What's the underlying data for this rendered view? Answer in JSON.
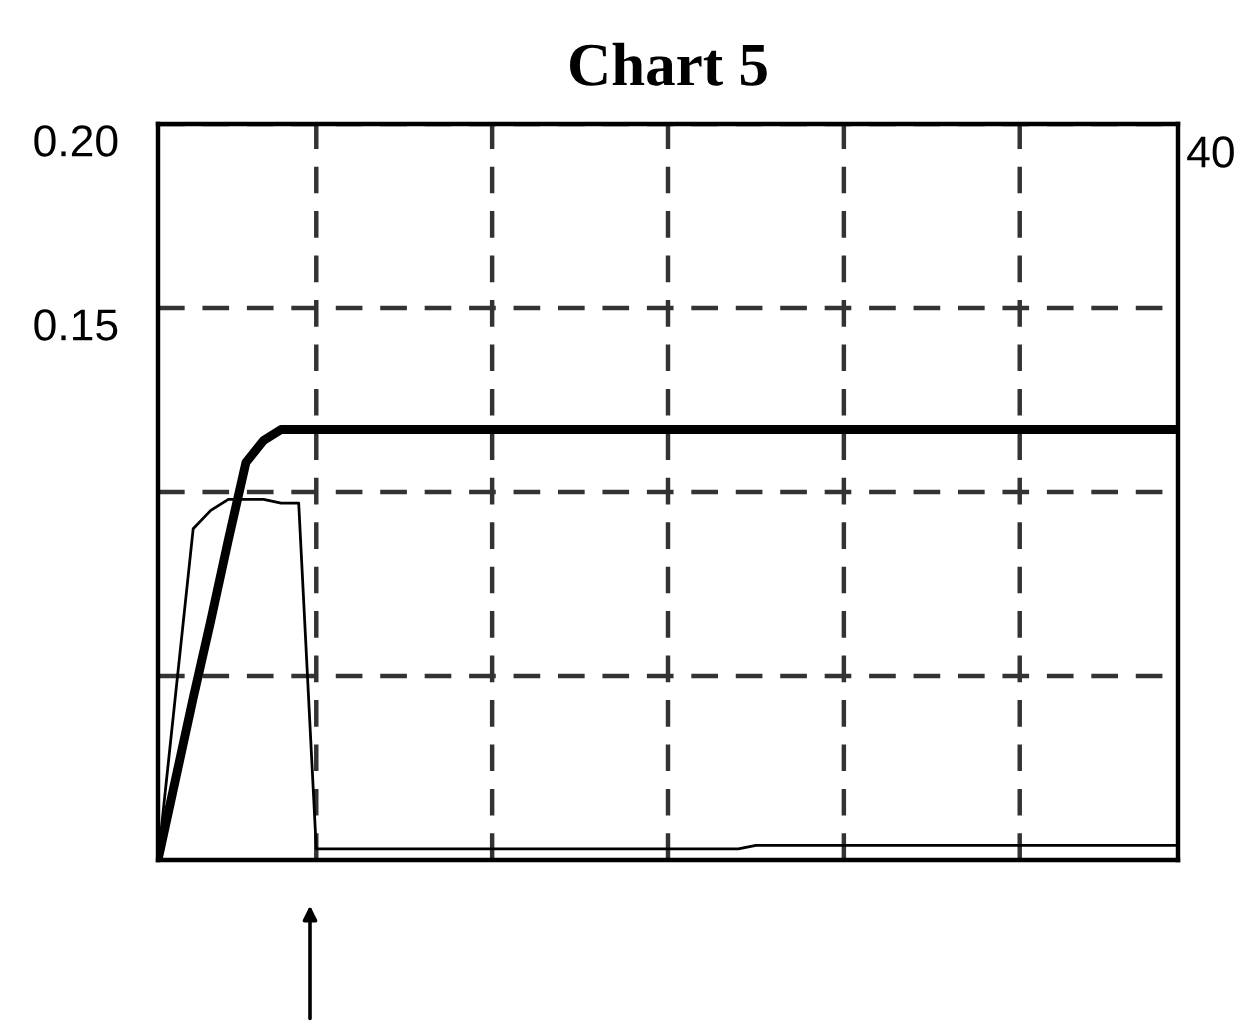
{
  "chart_data": {
    "type": "line",
    "title": "Chart 5",
    "categories": [
      null,
      null,
      null,
      null,
      null,
      null,
      null,
      null,
      null,
      null,
      null,
      null,
      null,
      null,
      null,
      null,
      null,
      null,
      null,
      null,
      null,
      null,
      null,
      null,
      null,
      null,
      null,
      null,
      null,
      null,
      null,
      null,
      null,
      null,
      null,
      null,
      null,
      null,
      null,
      null,
      null,
      null,
      null,
      null,
      null,
      null,
      null,
      null,
      null,
      null,
      null,
      null,
      null,
      null,
      null,
      null,
      null,
      null,
      null
    ],
    "ylim": [
      0,
      0.2
    ],
    "yticks": [
      {
        "value": 0.05,
        "label": null
      },
      {
        "value": 0.1,
        "label": null
      },
      {
        "value": 0.15,
        "label": "0.15"
      },
      {
        "value": 0.2,
        "label": "0.20"
      }
    ],
    "annotations": [
      "40"
    ],
    "tick_labels": "y",
    "grid": true,
    "line_style": "solid",
    "marker": "none",
    "series": [
      {
        "color": "#000000",
        "values": [
          0,
          0.022,
          0.044,
          0.065,
          0.087,
          0.108,
          0.114,
          0.117,
          0.117,
          0.117,
          0.117,
          0.117,
          0.117,
          0.117,
          0.117,
          0.117,
          0.117,
          0.117,
          0.117,
          0.117,
          0.117,
          0.117,
          0.117,
          0.117,
          0.117,
          0.117,
          0.117,
          0.117,
          0.117,
          0.117,
          0.117,
          0.117,
          0.117,
          0.117,
          0.117,
          0.117,
          0.117,
          0.117,
          0.117,
          0.117,
          0.117,
          0.117,
          0.117,
          0.117,
          0.117,
          0.117,
          0.117,
          0.117,
          0.117,
          0.117,
          0.117,
          0.117,
          0.117,
          0.117,
          0.117,
          0.117,
          0.117,
          0.117,
          0.117
        ]
      },
      {
        "color": "#000000",
        "values": [
          0,
          0.045,
          0.09,
          0.095,
          0.098,
          0.098,
          0.098,
          0.097,
          0.097,
          0.003,
          0.003,
          0.003,
          0.003,
          0.003,
          0.003,
          0.003,
          0.003,
          0.003,
          0.003,
          0.003,
          0.003,
          0.003,
          0.003,
          0.003,
          0.003,
          0.003,
          0.003,
          0.003,
          0.003,
          0.003,
          0.003,
          0.003,
          0.003,
          0.003,
          0.004,
          0.004,
          0.004,
          0.004,
          0.004,
          0.004,
          0.004,
          0.004,
          0.004,
          0.004,
          0.004,
          0.004,
          0.004,
          0.004,
          0.004,
          0.004,
          0.004,
          0.004,
          0.004,
          0.004,
          0.004,
          0.004,
          0.004,
          0.004,
          0.004
        ]
      }
    ]
  }
}
